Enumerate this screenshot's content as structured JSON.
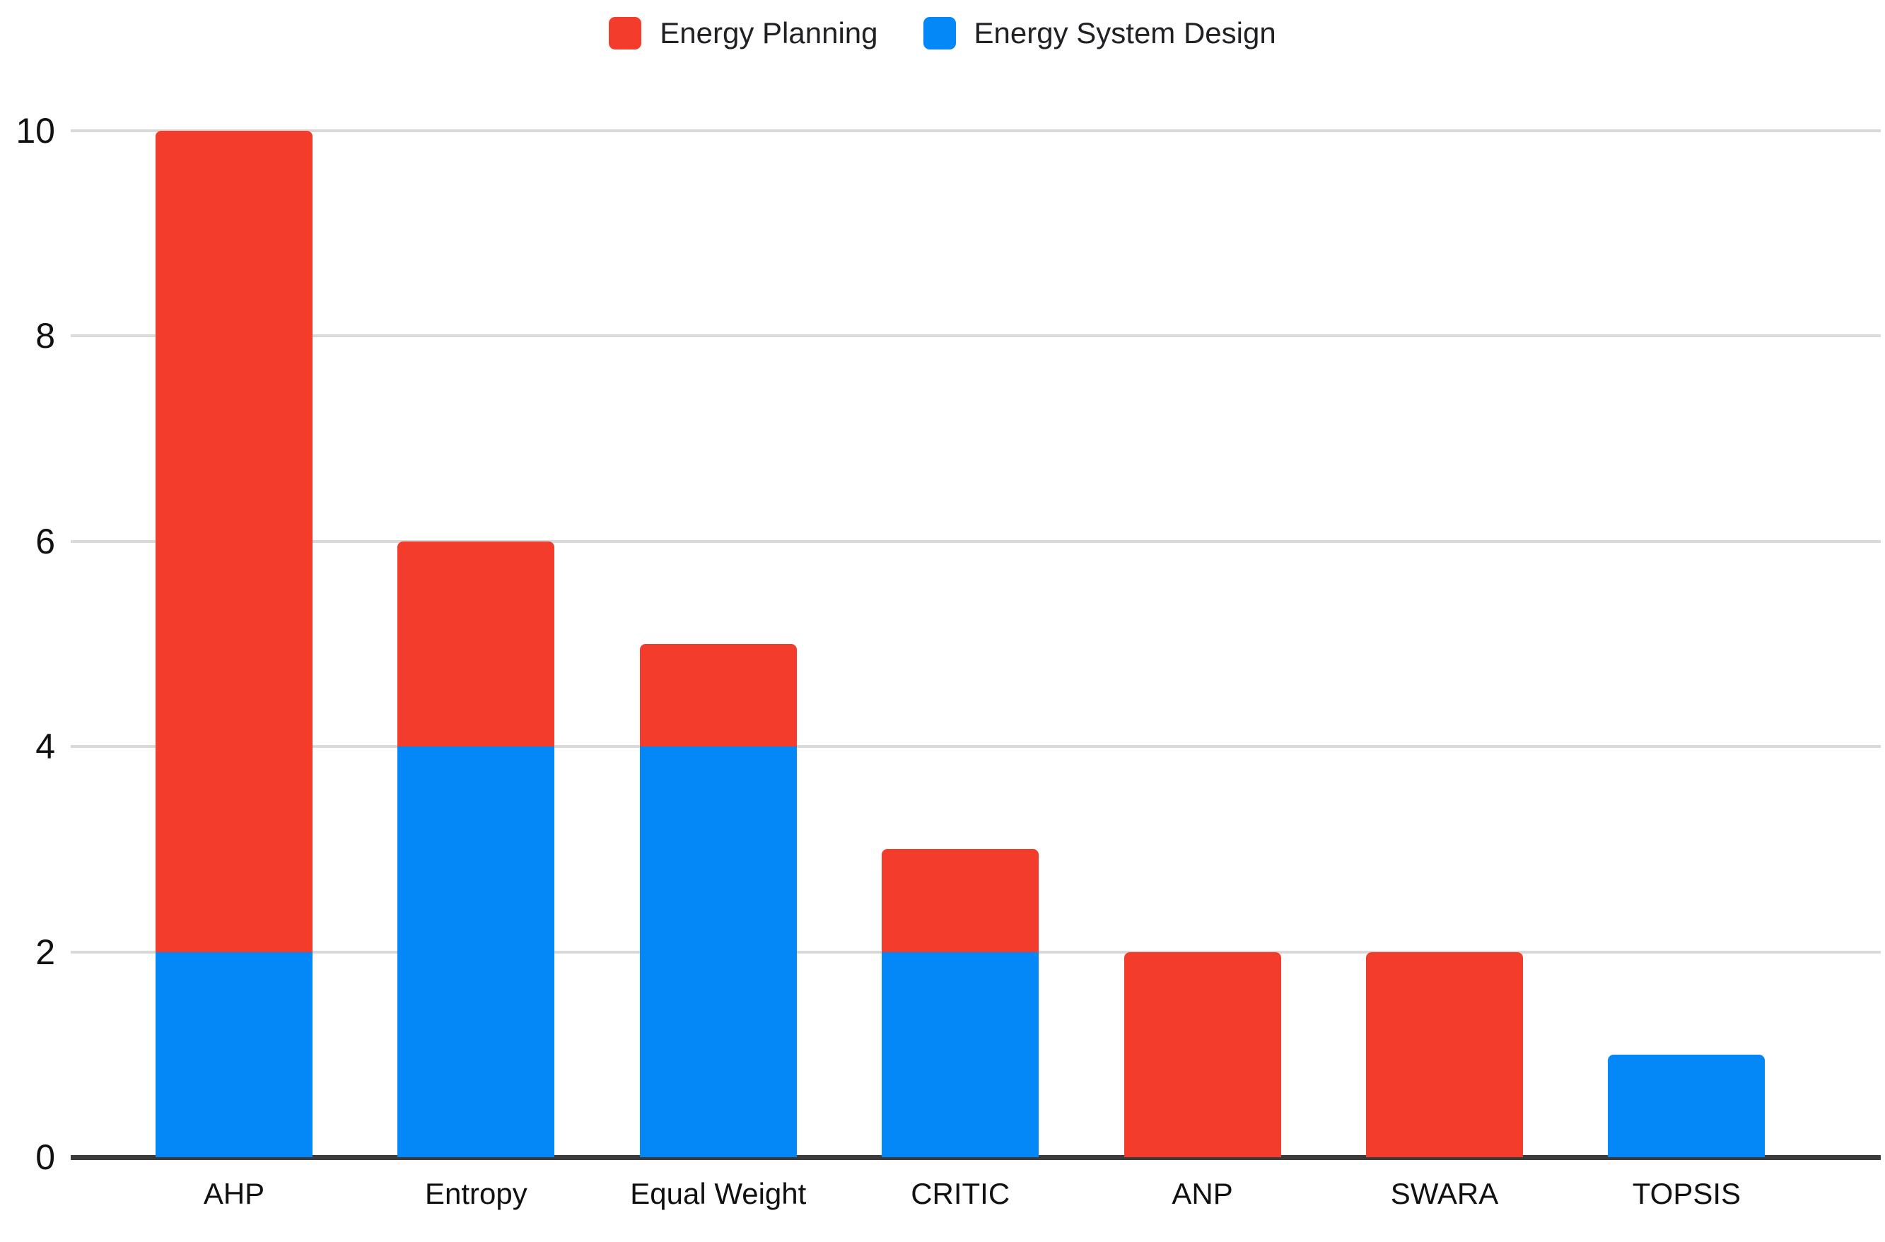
{
  "chart_data": {
    "type": "bar",
    "stacked": true,
    "title": "",
    "xlabel": "",
    "ylabel": "",
    "categories": [
      "AHP",
      "Entropy",
      "Equal Weight",
      "CRITIC",
      "ANP",
      "SWARA",
      "TOPSIS"
    ],
    "series": [
      {
        "name": "Energy Planning",
        "color": "#f43c2c",
        "values": [
          8,
          2,
          1,
          1,
          2,
          2,
          0
        ]
      },
      {
        "name": "Energy System Design",
        "color": "#0588f7",
        "values": [
          2,
          4,
          4,
          2,
          0,
          0,
          1
        ]
      }
    ],
    "stack_bottom_to_top": [
      "Energy System Design",
      "Energy Planning"
    ],
    "totals": [
      10,
      6,
      5,
      3,
      2,
      2,
      1
    ],
    "ylim": [
      0,
      10
    ],
    "yticks": [
      0,
      2,
      4,
      6,
      8,
      10
    ],
    "grid": true,
    "legend_position": "top-center",
    "colors": {
      "background": "#ffffff",
      "gridline": "#d9d9d9",
      "axis_line": "#3b3b3b",
      "tick_label": "#111111",
      "legend_text": "#202124"
    }
  }
}
